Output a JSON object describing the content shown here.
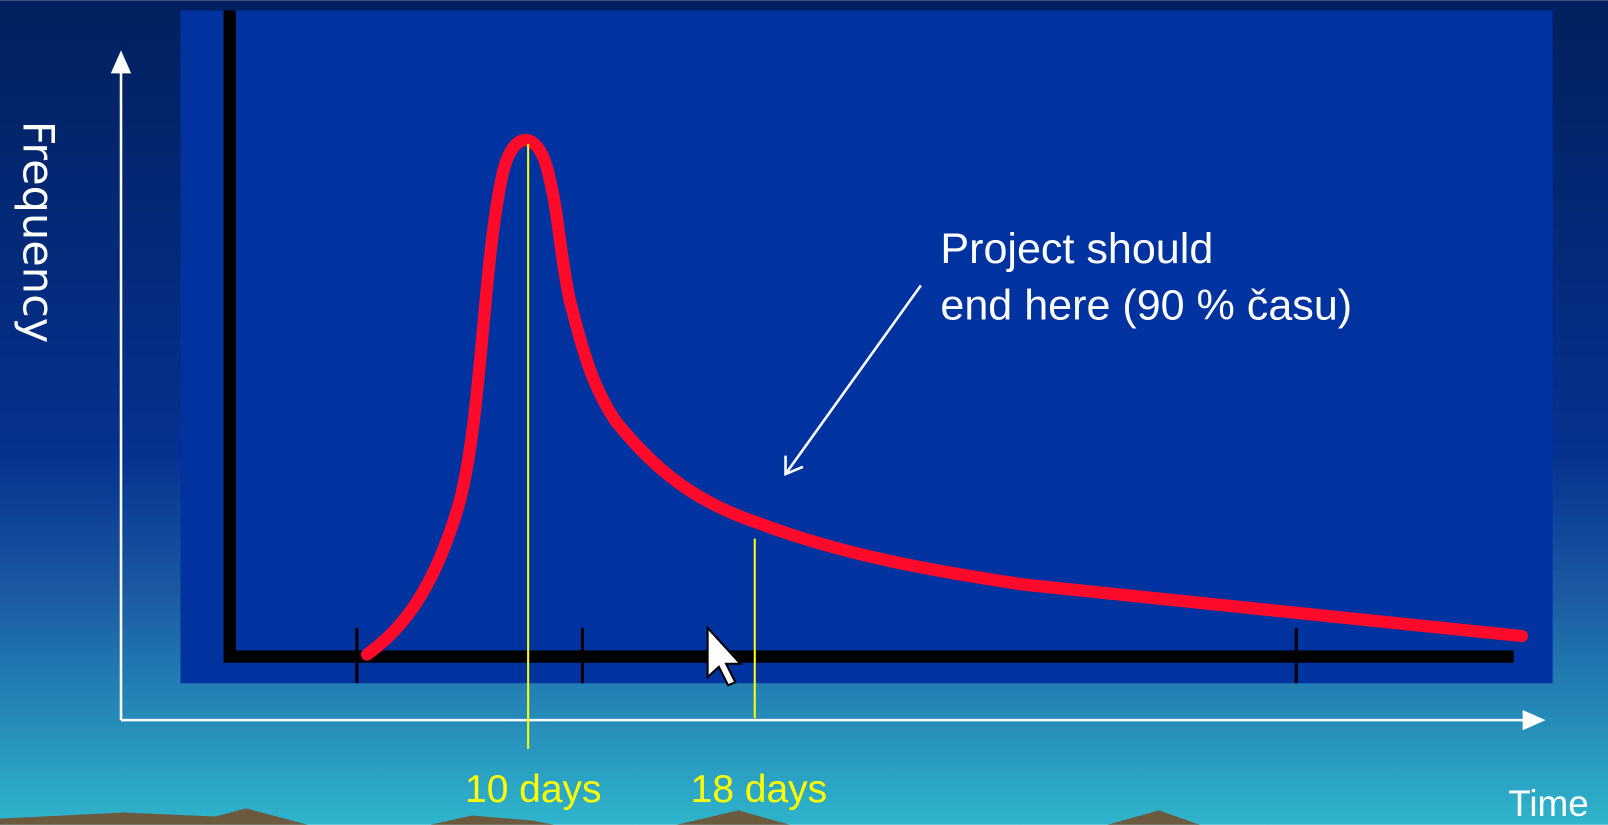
{
  "axes": {
    "y_label": "Frequency",
    "x_label": "Time"
  },
  "annotation": {
    "lines": [
      "Project should",
      "end here (90 % času)"
    ]
  },
  "markers": [
    {
      "label": "10 days"
    },
    {
      "label": "18 days"
    }
  ]
}
